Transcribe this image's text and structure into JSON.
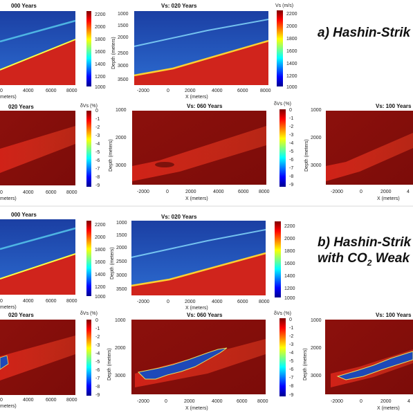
{
  "figure": {
    "section_a_heading": "a) Hashin-Strik",
    "section_b_heading_line1": "b) Hashin-Strik",
    "section_b_heading_line2_pre": "with CO",
    "section_b_heading_line2_sub": "2",
    "section_b_heading_line2_post": " Weak"
  },
  "panels": {
    "a_vs_000": {
      "title": "000 Years",
      "xlabel": "meters)",
      "cbar_label": ""
    },
    "a_vs_020": {
      "title": "Vs: 020 Years",
      "xlabel": "X (meters)",
      "ylabel": "Depth (meters)",
      "cbar_label": "Vs (m/s)"
    },
    "a_dvs_020": {
      "title": "020 Years",
      "xlabel": "meters)",
      "cbar_label": "δVs (%)"
    },
    "a_dvs_060": {
      "title": "Vs: 060 Years",
      "xlabel": "X (meters)",
      "ylabel": "Depth (meters)",
      "cbar_label": "δVs (%)"
    },
    "a_dvs_100": {
      "title": "Vs: 100 Years",
      "xlabel": "X (meters)",
      "ylabel": "Depth (meters)"
    },
    "b_vs_000": {
      "title": "000 Years",
      "xlabel": "meters)"
    },
    "b_vs_020": {
      "title": "Vs: 020 Years",
      "xlabel": "X (meters)",
      "ylabel": "Depth (meters)"
    },
    "b_dvs_020": {
      "title": "020 Years",
      "xlabel": "meters)",
      "cbar_label": "δVs (%)"
    },
    "b_dvs_060": {
      "title": "Vs: 060 Years",
      "xlabel": "X (meters)",
      "ylabel": "Depth (meters)",
      "cbar_label": "δVs (%)"
    },
    "b_dvs_100": {
      "title": "Vs: 100 Years",
      "xlabel": "X (meters)",
      "ylabel": "Depth (meters)"
    }
  },
  "ticks": {
    "x_partial": [
      "0",
      "4000",
      "6000",
      "8000"
    ],
    "x_full": [
      "-2000",
      "0",
      "2000",
      "4000",
      "6000",
      "8000"
    ],
    "x_right": [
      "-2000",
      "0",
      "2000",
      "4"
    ],
    "depth_vs": [
      "1000",
      "1500",
      "2000",
      "2500",
      "3000",
      "3500"
    ],
    "depth_dvs": [
      "1000",
      "2000",
      "3000"
    ],
    "vs_cbar": [
      "2200",
      "2000",
      "1800",
      "1600",
      "1400",
      "1200",
      "1000"
    ],
    "dvs_cbar": [
      "0",
      "-1",
      "-2",
      "-3",
      "-4",
      "-5",
      "-6",
      "-7",
      "-8",
      "-9"
    ]
  },
  "colors": {
    "high_velocity": "#d0241c",
    "low_velocity": "#1a3c9e",
    "dark_background": "#8a0f0c",
    "plume_red": "#e02a1d",
    "plume_blue": "#1e49b8"
  }
}
